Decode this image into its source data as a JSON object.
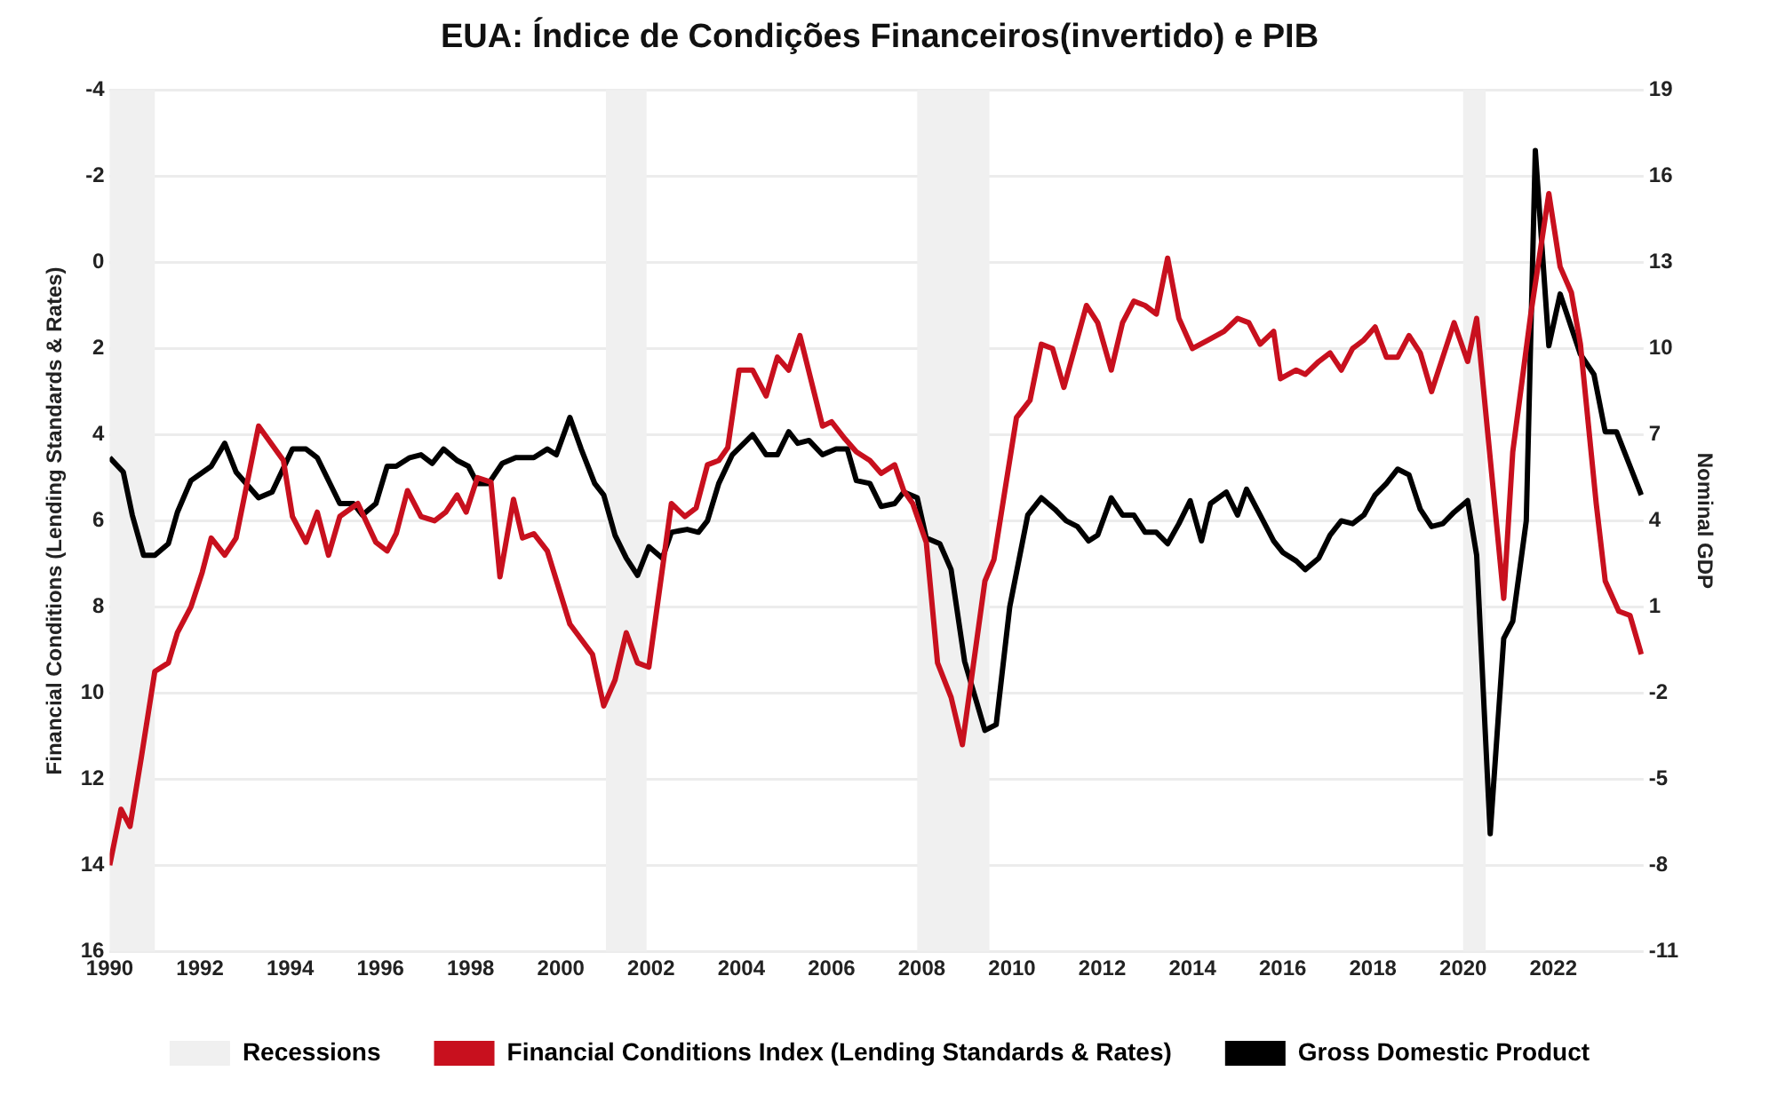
{
  "chart_data": {
    "type": "line",
    "title": "EUA: Índice de Condições Financeiros(invertido) e PIB",
    "ylabel": "Financial Conditions (Lending Standards & Rates)",
    "y2label": "Nominal GDP",
    "xlim": [
      1990,
      2024
    ],
    "xticks": [
      1990,
      1992,
      1994,
      1996,
      1998,
      2000,
      2002,
      2004,
      2006,
      2008,
      2010,
      2012,
      2014,
      2016,
      2018,
      2020,
      2022
    ],
    "ylim": [
      16,
      -4
    ],
    "yticks": [
      -4,
      -2,
      0,
      2,
      4,
      6,
      8,
      10,
      12,
      14,
      16
    ],
    "y2lim": [
      -11,
      19
    ],
    "y2ticks": [
      -11,
      -8,
      -5,
      -2,
      1,
      4,
      7,
      10,
      13,
      16,
      19
    ],
    "grid": "y",
    "legend": "bottom",
    "marker": "none",
    "line_style": "solid",
    "bands": [
      {
        "axis": "x",
        "from": 1990.0,
        "to": 1991.0,
        "label": "Recessions",
        "color": "#f0f0f0"
      },
      {
        "axis": "x",
        "from": 2001.0,
        "to": 2001.9,
        "label": null,
        "color": "#f0f0f0"
      },
      {
        "axis": "x",
        "from": 2007.9,
        "to": 2009.5,
        "label": null,
        "color": "#f0f0f0"
      },
      {
        "axis": "x",
        "from": 2020.0,
        "to": 2020.5,
        "label": null,
        "color": "#f0f0f0"
      }
    ],
    "series": [
      {
        "name": "Financial Conditions Index (Lending Standards & Rates)",
        "color": "#c8101e",
        "x": [
          1990.0,
          1990.25,
          1990.45,
          1990.7,
          1991.0,
          1991.3,
          1991.5,
          1991.8,
          1992.05,
          1992.25,
          1992.55,
          1992.8,
          1993.3,
          1993.85,
          1994.05,
          1994.35,
          1994.6,
          1994.85,
          1995.1,
          1995.5,
          1995.9,
          1996.15,
          1996.35,
          1996.6,
          1996.9,
          1997.2,
          1997.45,
          1997.7,
          1997.9,
          1998.15,
          1998.45,
          1998.65,
          1998.95,
          1999.15,
          1999.4,
          1999.7,
          2000.2,
          2000.7,
          2000.95,
          2001.2,
          2001.45,
          2001.7,
          2001.95,
          2002.45,
          2002.75,
          2003.0,
          2003.25,
          2003.5,
          2003.7,
          2003.95,
          2004.25,
          2004.55,
          2004.8,
          2005.05,
          2005.3,
          2005.8,
          2006.0,
          2006.3,
          2006.55,
          2006.85,
          2007.1,
          2007.4,
          2007.6,
          2007.8,
          2008.1,
          2008.35,
          2008.65,
          2008.9,
          2009.4,
          2009.6,
          2010.1,
          2010.4,
          2010.65,
          2010.9,
          2011.15,
          2011.65,
          2011.9,
          2012.2,
          2012.45,
          2012.7,
          2012.95,
          2013.2,
          2013.45,
          2013.7,
          2014.0,
          2014.35,
          2014.7,
          2015.0,
          2015.25,
          2015.5,
          2015.8,
          2015.95,
          2016.3,
          2016.5,
          2016.8,
          2017.05,
          2017.3,
          2017.55,
          2017.8,
          2018.05,
          2018.3,
          2018.55,
          2018.8,
          2019.05,
          2019.3,
          2019.55,
          2019.8,
          2020.1,
          2020.3,
          2020.9,
          2021.1,
          2021.5,
          2021.9,
          2022.15,
          2022.4,
          2022.6,
          2022.95,
          2023.15,
          2023.45,
          2023.7,
          2023.95
        ],
        "values": [
          14.0,
          12.7,
          13.1,
          11.5,
          9.5,
          9.3,
          8.6,
          8.0,
          7.2,
          6.4,
          6.8,
          6.4,
          3.8,
          4.6,
          5.9,
          6.5,
          5.8,
          6.8,
          5.9,
          5.6,
          6.5,
          6.7,
          6.3,
          5.3,
          5.9,
          6.0,
          5.8,
          5.4,
          5.8,
          5.0,
          5.1,
          7.3,
          5.5,
          6.4,
          6.3,
          6.7,
          8.4,
          9.1,
          10.3,
          9.7,
          8.6,
          9.3,
          9.4,
          5.6,
          5.9,
          5.7,
          4.7,
          4.6,
          4.3,
          2.5,
          2.5,
          3.1,
          2.2,
          2.5,
          1.7,
          3.8,
          3.7,
          4.1,
          4.4,
          4.6,
          4.9,
          4.7,
          5.3,
          5.6,
          6.5,
          9.3,
          10.1,
          11.2,
          7.4,
          6.9,
          3.6,
          3.2,
          1.9,
          2.0,
          2.9,
          1.0,
          1.4,
          2.5,
          1.4,
          0.9,
          1.0,
          1.2,
          -0.1,
          1.3,
          2.0,
          1.8,
          1.6,
          1.3,
          1.4,
          1.9,
          1.6,
          2.7,
          2.5,
          2.6,
          2.3,
          2.1,
          2.5,
          2.0,
          1.8,
          1.5,
          2.2,
          2.2,
          1.7,
          2.1,
          3.0,
          2.2,
          1.4,
          2.3,
          1.3,
          7.8,
          4.4,
          1.2,
          -1.6,
          0.1,
          0.7,
          1.9,
          5.6,
          7.4,
          8.1,
          8.2,
          9.1
        ]
      },
      {
        "name": "Gross Domestic Product",
        "color": "#000000",
        "axis": "y2",
        "x": [
          1990.0,
          1990.3,
          1990.5,
          1990.75,
          1991.0,
          1991.3,
          1991.5,
          1991.8,
          1992.25,
          1992.55,
          1992.8,
          1993.3,
          1993.6,
          1994.05,
          1994.35,
          1994.6,
          1995.1,
          1995.4,
          1995.6,
          1995.9,
          1996.15,
          1996.35,
          1996.65,
          1996.9,
          1997.15,
          1997.4,
          1997.7,
          1997.95,
          1998.15,
          1998.4,
          1998.7,
          1999.0,
          1999.4,
          1999.7,
          1999.9,
          2000.2,
          2000.45,
          2000.75,
          2000.95,
          2001.2,
          2001.45,
          2001.7,
          2001.95,
          2002.25,
          2002.45,
          2002.8,
          2003.05,
          2003.25,
          2003.5,
          2003.8,
          2004.25,
          2004.55,
          2004.8,
          2005.05,
          2005.25,
          2005.5,
          2005.8,
          2006.1,
          2006.35,
          2006.55,
          2006.85,
          2007.1,
          2007.4,
          2007.6,
          2007.9,
          2008.1,
          2008.4,
          2008.65,
          2008.95,
          2009.4,
          2009.65,
          2009.95,
          2010.35,
          2010.65,
          2010.95,
          2011.2,
          2011.45,
          2011.7,
          2011.9,
          2012.2,
          2012.45,
          2012.7,
          2012.95,
          2013.2,
          2013.45,
          2013.7,
          2013.95,
          2014.2,
          2014.4,
          2014.75,
          2015.0,
          2015.2,
          2015.5,
          2015.8,
          2016.0,
          2016.3,
          2016.5,
          2016.8,
          2017.05,
          2017.3,
          2017.55,
          2017.8,
          2018.05,
          2018.3,
          2018.55,
          2018.8,
          2019.05,
          2019.3,
          2019.55,
          2019.8,
          2020.1,
          2020.3,
          2020.6,
          2020.9,
          2021.1,
          2021.4,
          2021.6,
          2021.9,
          2022.15,
          2022.6,
          2022.9,
          2023.15,
          2023.4,
          2023.7,
          2023.95
        ],
        "values": [
          6.2,
          5.7,
          4.2,
          2.8,
          2.8,
          3.2,
          4.3,
          5.4,
          5.9,
          6.7,
          5.7,
          4.8,
          5.0,
          6.5,
          6.5,
          6.2,
          4.6,
          4.6,
          4.2,
          4.6,
          5.9,
          5.9,
          6.2,
          6.3,
          6.0,
          6.5,
          6.1,
          5.9,
          5.3,
          5.3,
          6.0,
          6.2,
          6.2,
          6.5,
          6.3,
          7.6,
          6.5,
          5.3,
          4.9,
          3.5,
          2.7,
          2.1,
          3.1,
          2.7,
          3.6,
          3.7,
          3.6,
          4.0,
          5.3,
          6.3,
          7.0,
          6.3,
          6.3,
          7.1,
          6.7,
          6.8,
          6.3,
          6.5,
          6.5,
          5.4,
          5.3,
          4.5,
          4.6,
          5.0,
          4.8,
          3.4,
          3.2,
          2.3,
          -0.9,
          -3.3,
          -3.1,
          1.0,
          4.2,
          4.8,
          4.4,
          4.0,
          3.8,
          3.3,
          3.5,
          4.8,
          4.2,
          4.2,
          3.6,
          3.6,
          3.2,
          3.9,
          4.7,
          3.3,
          4.6,
          5.0,
          4.2,
          5.1,
          4.2,
          3.3,
          2.9,
          2.6,
          2.3,
          2.7,
          3.5,
          4.0,
          3.9,
          4.2,
          4.9,
          5.3,
          5.8,
          5.6,
          4.4,
          3.8,
          3.9,
          4.3,
          4.7,
          2.8,
          -6.9,
          -0.1,
          0.5,
          4.0,
          16.9,
          10.1,
          11.9,
          9.8,
          9.1,
          7.1,
          7.1,
          5.9,
          4.9
        ]
      }
    ]
  }
}
